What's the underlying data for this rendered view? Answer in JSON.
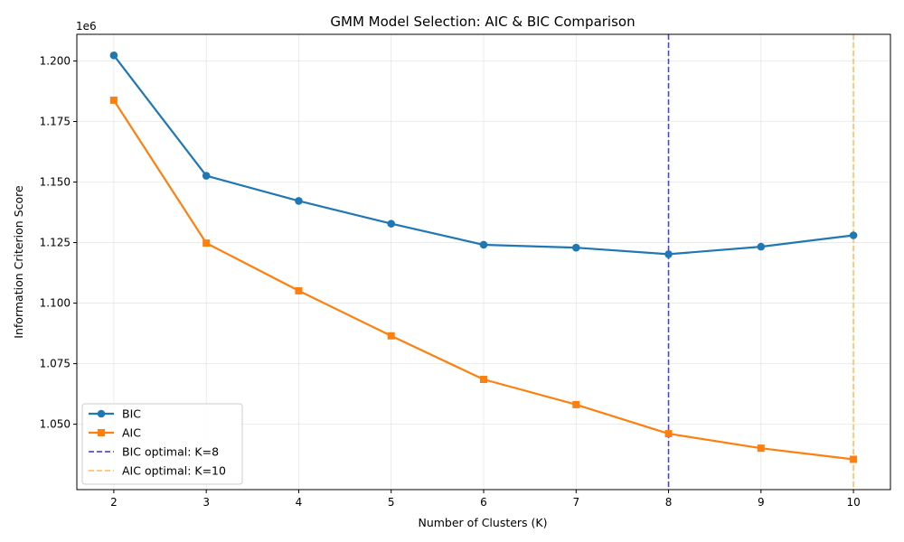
{
  "chart_data": {
    "type": "line",
    "title": "GMM Model Selection: AIC & BIC Comparison",
    "xlabel": "Number of Clusters (K)",
    "ylabel": "Information Criterion Score",
    "y_offset_label": "1e6",
    "x": [
      2,
      3,
      4,
      5,
      6,
      7,
      8,
      9,
      10
    ],
    "xlim": [
      1.6,
      10.4
    ],
    "ylim": [
      1023000,
      1211000
    ],
    "y_ticks": [
      1.05,
      1.075,
      1.1,
      1.125,
      1.15,
      1.175,
      1.2
    ],
    "y_tick_labels": [
      "1.050",
      "1.075",
      "1.100",
      "1.125",
      "1.150",
      "1.175",
      "1.200"
    ],
    "grid": true,
    "legend_position": "lower-left",
    "series": [
      {
        "name": "BIC",
        "color": "#1f77b4",
        "marker": "circle",
        "values": [
          1202300,
          1152600,
          1142200,
          1132800,
          1124100,
          1122900,
          1120200,
          1123300,
          1128000
        ]
      },
      {
        "name": "AIC",
        "color": "#ff7f0e",
        "marker": "square",
        "values": [
          1183800,
          1124800,
          1105100,
          1086500,
          1068500,
          1058100,
          1046100,
          1040100,
          1035500
        ]
      }
    ],
    "reference_lines": [
      {
        "name": "BIC optimal: K=8",
        "x": 8,
        "color": "#3333dd"
      },
      {
        "name": "AIC optimal: K=10",
        "x": 10,
        "color": "#ffb84d"
      }
    ]
  }
}
